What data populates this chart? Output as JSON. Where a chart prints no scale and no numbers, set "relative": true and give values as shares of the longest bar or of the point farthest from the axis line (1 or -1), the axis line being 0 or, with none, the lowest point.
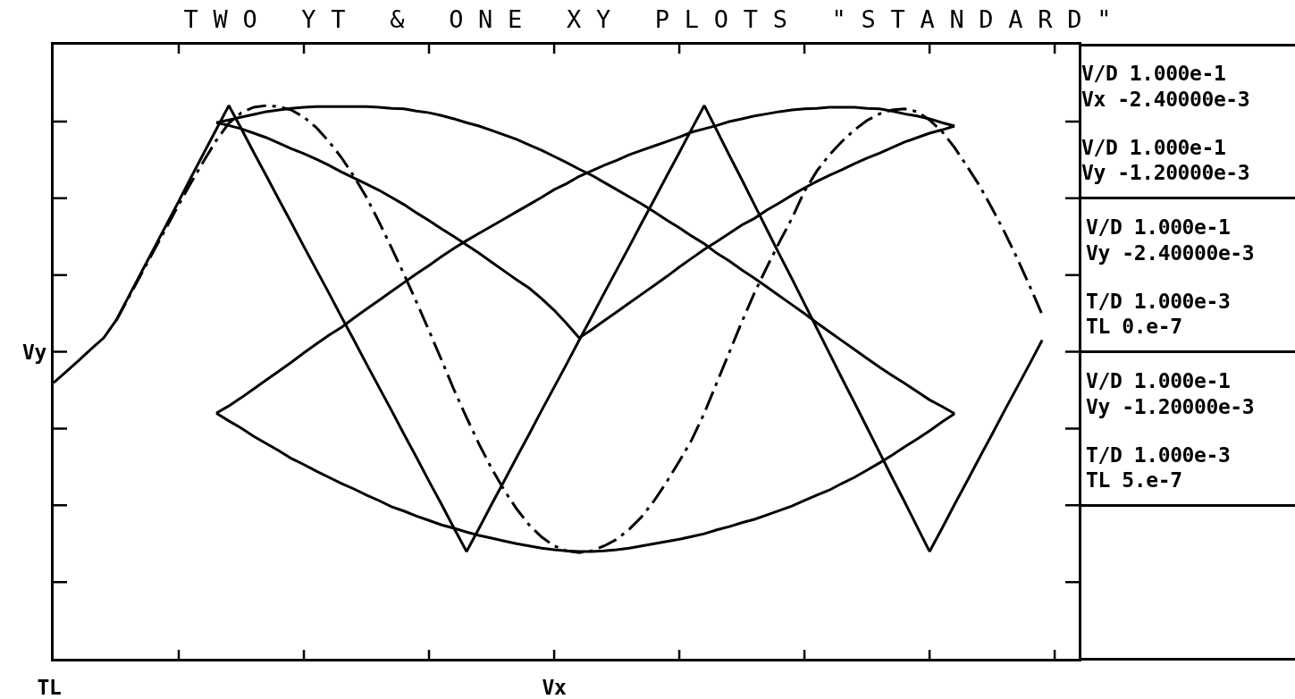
{
  "chart_data": {
    "type": "line",
    "title": "TWO YT & ONE XY PLOTS \"STANDARD\"",
    "xlabel": "Vx",
    "ylabel": "Vy",
    "relative": true,
    "categories": [
      null,
      null,
      null,
      null,
      null,
      null,
      null,
      null,
      null,
      null,
      null,
      null,
      null,
      null,
      null,
      null,
      null,
      null,
      null,
      null,
      null,
      null,
      null,
      null,
      null,
      null,
      null,
      null,
      null,
      null,
      null,
      null,
      null,
      null,
      null,
      null,
      null,
      null,
      null,
      null,
      null,
      null,
      null,
      null,
      null,
      null,
      null,
      null,
      null,
      null,
      null,
      null,
      null,
      null,
      null,
      null,
      null,
      null,
      null,
      null,
      null,
      null,
      null,
      null,
      null,
      null,
      null,
      null,
      null,
      null,
      null,
      null,
      null,
      null,
      null,
      null,
      null,
      null,
      null,
      null,
      null
    ],
    "series": [
      {
        "color": "#000000",
        "line_style": "solid",
        "values": [
          0.499,
          0.519,
          0.539,
          0.56,
          0.58,
          0.612,
          0.655,
          0.698,
          0.741,
          0.784,
          0.827,
          0.871,
          0.914,
          0.957,
          1.0,
          0.958,
          0.915,
          0.873,
          0.83,
          0.788,
          0.745,
          0.703,
          0.661,
          0.618,
          0.576,
          0.533,
          0.491,
          0.449,
          0.406,
          0.364,
          0.321,
          0.279,
          0.236,
          0.194,
          0.236,
          0.279,
          0.321,
          0.364,
          0.406,
          0.449,
          0.491,
          0.533,
          0.576,
          0.618,
          0.661,
          0.703,
          0.745,
          0.788,
          0.83,
          0.873,
          0.915,
          0.958,
          1.0,
          0.955,
          0.91,
          0.866,
          0.821,
          0.776,
          0.731,
          0.687,
          0.642,
          0.597,
          0.552,
          0.507,
          0.463,
          0.418,
          0.373,
          0.328,
          0.284,
          0.239,
          0.194,
          0.236,
          0.279,
          0.321,
          0.364,
          0.406,
          0.449,
          0.491,
          0.533,
          0.576,
          null
        ]
      },
      {
        "color": "#000000",
        "line_style": "dashed",
        "values": [
          null,
          null,
          null,
          null,
          null,
          0.611,
          0.653,
          0.695,
          0.737,
          0.779,
          0.821,
          0.861,
          0.9,
          0.937,
          0.968,
          0.987,
          0.997,
          1.0,
          0.998,
          0.992,
          0.979,
          0.96,
          0.935,
          0.906,
          0.872,
          0.834,
          0.79,
          0.743,
          0.695,
          0.645,
          0.593,
          0.54,
          0.486,
          0.436,
          0.388,
          0.344,
          0.305,
          0.271,
          0.242,
          0.22,
          0.204,
          0.195,
          0.192,
          0.195,
          0.204,
          0.216,
          0.234,
          0.257,
          0.286,
          0.32,
          0.357,
          0.396,
          0.444,
          0.499,
          0.554,
          0.609,
          0.661,
          0.708,
          0.753,
          0.796,
          0.845,
          0.882,
          0.911,
          0.935,
          0.956,
          0.973,
          0.985,
          0.992,
          0.994,
          0.989,
          0.974,
          0.953,
          0.924,
          0.89,
          0.855,
          0.814,
          0.771,
          0.724,
          0.674,
          0.622,
          null
        ]
      },
      {
        "color": "#000000",
        "line_style": "solid",
        "values": [
          null,
          null,
          null,
          null,
          null,
          null,
          null,
          null,
          null,
          null,
          null,
          null,
          null,
          0.444,
          0.43,
          0.417,
          0.402,
          0.389,
          0.376,
          0.362,
          0.351,
          0.339,
          0.328,
          0.317,
          0.307,
          0.296,
          0.286,
          0.275,
          0.267,
          0.258,
          0.25,
          0.242,
          0.236,
          0.229,
          0.223,
          0.218,
          0.213,
          0.208,
          0.204,
          0.2,
          0.197,
          0.195,
          0.194,
          0.194,
          0.195,
          0.197,
          0.2,
          0.204,
          0.208,
          0.212,
          0.216,
          0.221,
          0.226,
          0.233,
          0.239,
          0.246,
          0.252,
          0.26,
          0.268,
          0.276,
          0.286,
          0.296,
          0.305,
          0.317,
          0.328,
          0.341,
          0.354,
          0.368,
          0.383,
          0.397,
          0.412,
          0.428,
          0.443,
          null,
          null,
          null,
          null,
          null,
          null,
          null,
          null
        ]
      },
      {
        "color": "#000000",
        "line_style": "solid",
        "values": [
          null,
          null,
          null,
          null,
          null,
          null,
          null,
          null,
          null,
          null,
          null,
          null,
          null,
          0.444,
          0.457,
          0.472,
          0.488,
          0.504,
          0.52,
          0.536,
          0.553,
          0.569,
          0.585,
          0.599,
          0.616,
          0.632,
          0.648,
          0.664,
          0.68,
          0.696,
          0.711,
          0.727,
          0.742,
          0.756,
          0.769,
          0.782,
          0.795,
          0.808,
          0.821,
          0.834,
          0.848,
          0.859,
          0.872,
          0.882,
          0.892,
          0.901,
          0.911,
          0.919,
          0.927,
          0.935,
          0.943,
          0.952,
          0.958,
          0.964,
          0.971,
          0.976,
          0.981,
          0.985,
          0.989,
          0.992,
          0.994,
          0.995,
          0.997,
          0.997,
          0.997,
          0.995,
          0.994,
          0.99,
          0.985,
          0.981,
          0.976,
          0.969,
          0.963,
          null,
          null,
          null,
          null,
          null,
          null,
          null,
          null
        ]
      },
      {
        "color": "#000000",
        "line_style": "solid",
        "values": [
          null,
          null,
          null,
          null,
          null,
          null,
          null,
          null,
          null,
          null,
          null,
          null,
          null,
          0.969,
          0.974,
          0.979,
          0.984,
          0.989,
          0.992,
          0.995,
          0.997,
          0.998,
          0.998,
          0.998,
          0.998,
          0.998,
          0.997,
          0.995,
          0.994,
          0.99,
          0.987,
          0.982,
          0.976,
          0.969,
          0.963,
          0.955,
          0.947,
          0.939,
          0.929,
          0.919,
          0.908,
          0.897,
          0.885,
          0.874,
          0.861,
          0.848,
          0.835,
          0.822,
          0.808,
          0.793,
          0.779,
          0.764,
          0.75,
          0.733,
          0.719,
          0.703,
          0.688,
          0.672,
          0.656,
          0.64,
          0.624,
          0.607,
          0.591,
          0.575,
          0.559,
          0.543,
          0.527,
          0.512,
          0.498,
          0.483,
          0.468,
          0.456,
          0.443,
          null,
          null,
          null,
          null,
          null,
          null,
          null,
          null
        ]
      },
      {
        "color": "#000000",
        "line_style": "solid",
        "values": [
          null,
          null,
          null,
          null,
          null,
          null,
          null,
          null,
          null,
          null,
          null,
          null,
          null,
          0.969,
          0.964,
          0.958,
          0.95,
          0.942,
          0.932,
          0.922,
          0.913,
          0.903,
          0.892,
          0.88,
          0.869,
          0.858,
          0.847,
          0.834,
          0.821,
          0.806,
          0.792,
          0.777,
          0.763,
          0.748,
          0.733,
          0.717,
          0.701,
          0.685,
          0.67,
          0.651,
          0.63,
          0.606,
          0.58,
          0.595,
          0.611,
          0.627,
          0.643,
          0.659,
          0.675,
          0.691,
          0.708,
          0.724,
          0.74,
          0.754,
          0.769,
          0.784,
          0.796,
          0.811,
          0.824,
          0.838,
          0.851,
          0.863,
          0.874,
          0.884,
          0.895,
          0.905,
          0.914,
          0.924,
          0.934,
          0.942,
          0.95,
          0.956,
          0.963,
          null,
          null,
          null,
          null,
          null,
          null,
          null,
          null
        ]
      }
    ],
    "annotations": [
      "V/D 1.000e-1",
      "Vx -2.40000e-3",
      "V/D 1.000e-1",
      "Vy -1.20000e-3",
      "V/D 1.000e-1",
      "Vy -2.40000e-3",
      "T/D 1.000e-3",
      "TL 0.e-7",
      "V/D 1.000e-1",
      "Vy -1.20000e-3",
      "T/D 1.000e-3",
      "TL 5.e-7",
      "TL"
    ]
  }
}
